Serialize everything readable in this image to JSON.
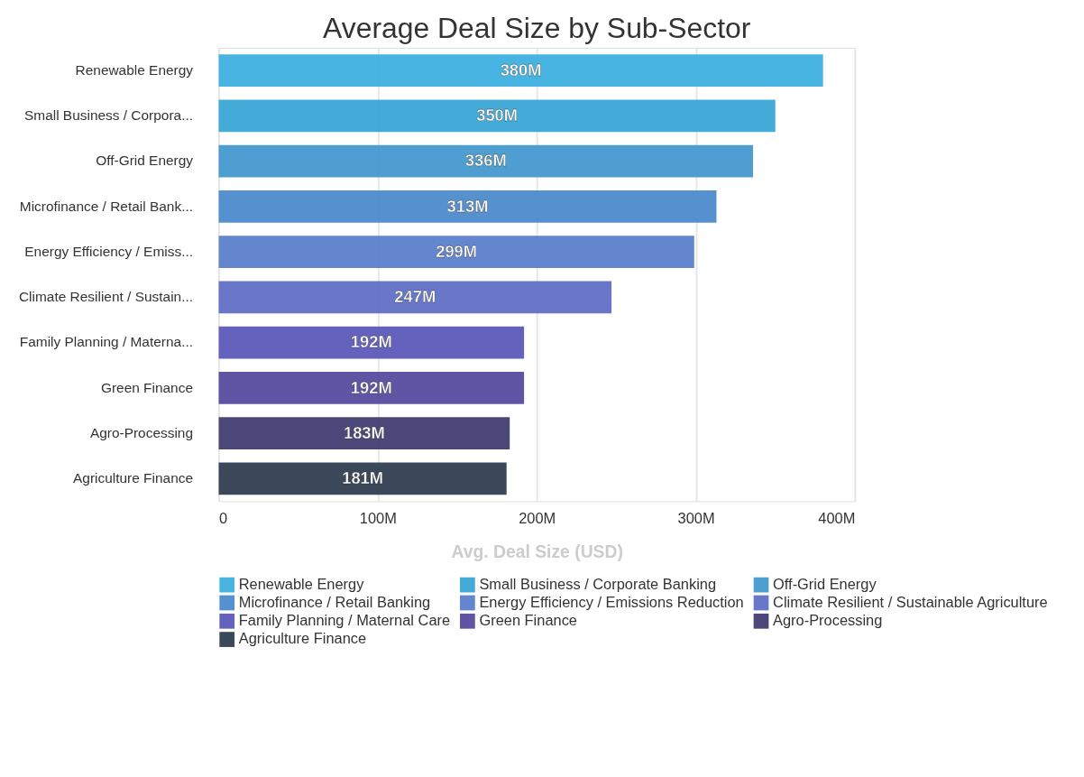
{
  "chart_data": {
    "type": "bar",
    "orientation": "horizontal",
    "title": "Average Deal Size by Sub-Sector",
    "xlabel": "Avg. Deal Size (USD)",
    "categories": [
      "Renewable Energy",
      "Small Business / Corpora...",
      "Off-Grid Energy",
      "Microfinance / Retail Bank...",
      "Energy Efficiency / Emiss...",
      "Climate Resilient / Sustain...",
      "Family Planning / Materna...",
      "Green Finance",
      "Agro-Processing",
      "Agriculture Finance"
    ],
    "series": [
      {
        "name": "Renewable Energy",
        "color": "#3eb0df",
        "values": [
          380,
          null,
          null,
          null,
          null,
          null,
          null,
          null,
          null,
          null
        ]
      },
      {
        "name": "Small Business / Corporate Banking",
        "color": "#3aa6d6",
        "values": [
          null,
          350,
          null,
          null,
          null,
          null,
          null,
          null,
          null,
          null
        ]
      },
      {
        "name": "Off-Grid Energy",
        "color": "#4699d0",
        "values": [
          null,
          null,
          336,
          null,
          null,
          null,
          null,
          null,
          null,
          null
        ]
      },
      {
        "name": "Microfinance / Retail Banking",
        "color": "#4c8bcc",
        "values": [
          null,
          null,
          null,
          313,
          null,
          null,
          null,
          null,
          null,
          null
        ]
      },
      {
        "name": "Energy Efficiency / Emissions Reduction",
        "color": "#5b80cc",
        "values": [
          null,
          null,
          null,
          null,
          299,
          null,
          null,
          null,
          null,
          null
        ]
      },
      {
        "name": "Climate Resilient / Sustainable Agriculture",
        "color": "#6070c4",
        "values": [
          null,
          null,
          null,
          null,
          null,
          247,
          null,
          null,
          null,
          null
        ]
      },
      {
        "name": "Family Planning / Maternal Care",
        "color": "#5c5ab8",
        "values": [
          null,
          null,
          null,
          null,
          null,
          null,
          192,
          null,
          null,
          null
        ]
      },
      {
        "name": "Green Finance",
        "color": "#574b9f",
        "values": [
          null,
          null,
          null,
          null,
          null,
          null,
          null,
          192,
          null,
          null
        ]
      },
      {
        "name": "Agro-Processing",
        "color": "#413e72",
        "values": [
          null,
          null,
          null,
          null,
          null,
          null,
          null,
          null,
          183,
          null
        ]
      },
      {
        "name": "Agriculture Finance",
        "color": "#2f3e50",
        "values": [
          null,
          null,
          null,
          null,
          null,
          null,
          null,
          null,
          null,
          181
        ]
      }
    ],
    "value_labels": [
      "380M",
      "350M",
      "336M",
      "313M",
      "299M",
      "247M",
      "192M",
      "192M",
      "183M",
      "181M"
    ],
    "xlim": [
      0,
      400
    ],
    "xticks": [
      0,
      {
        "value": 100,
        "label": "100M"
      },
      {
        "value": 200,
        "label": "200M"
      },
      {
        "value": 300,
        "label": "300M"
      },
      {
        "value": 400,
        "label": "400M"
      }
    ],
    "grid": "x",
    "legend": "bottom"
  }
}
